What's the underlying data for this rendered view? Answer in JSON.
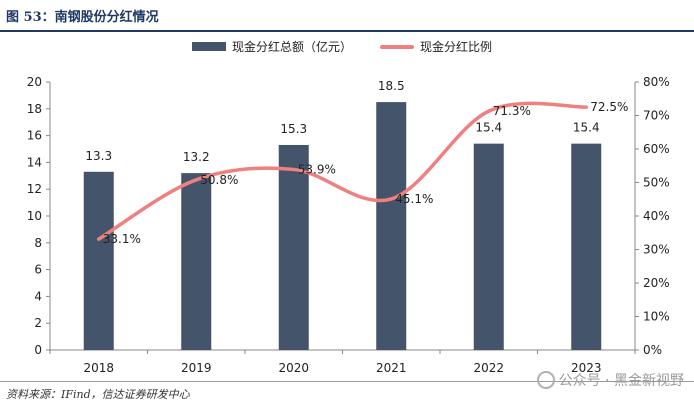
{
  "title": "图 53：南钢股份分红情况",
  "legend": {
    "bar_label": "现金分红总额（亿元）",
    "line_label": "现金分红比例"
  },
  "source": "资料来源：IFind，信达证券研发中心",
  "watermark": "公众号 · 黑金新视野",
  "colors": {
    "bar": "#44546a",
    "line": "#f08080",
    "title": "#1f3864"
  },
  "chart_data": {
    "type": "bar",
    "categories": [
      "2018",
      "2019",
      "2020",
      "2021",
      "2022",
      "2023"
    ],
    "series": [
      {
        "name": "现金分红总额（亿元）",
        "type": "bar",
        "axis": "left",
        "values": [
          13.3,
          13.2,
          15.3,
          18.5,
          15.4,
          15.4
        ],
        "labels": [
          "13.3",
          "13.2",
          "15.3",
          "18.5",
          "15.4",
          "15.4"
        ]
      },
      {
        "name": "现金分红比例",
        "type": "line",
        "axis": "right",
        "values": [
          33.1,
          50.8,
          53.9,
          45.1,
          71.3,
          72.5
        ],
        "labels": [
          "33.1%",
          "50.8%",
          "53.9%",
          "45.1%",
          "71.3%",
          "72.5%"
        ]
      }
    ],
    "y_left": {
      "min": 0,
      "max": 20,
      "ticks": [
        "0",
        "2",
        "4",
        "6",
        "8",
        "10",
        "12",
        "14",
        "16",
        "18",
        "20"
      ]
    },
    "y_right": {
      "min": 0,
      "max": 80,
      "ticks": [
        "0%",
        "10%",
        "20%",
        "30%",
        "40%",
        "50%",
        "60%",
        "70%",
        "80%"
      ]
    },
    "grid": false,
    "legend_position": "top"
  }
}
